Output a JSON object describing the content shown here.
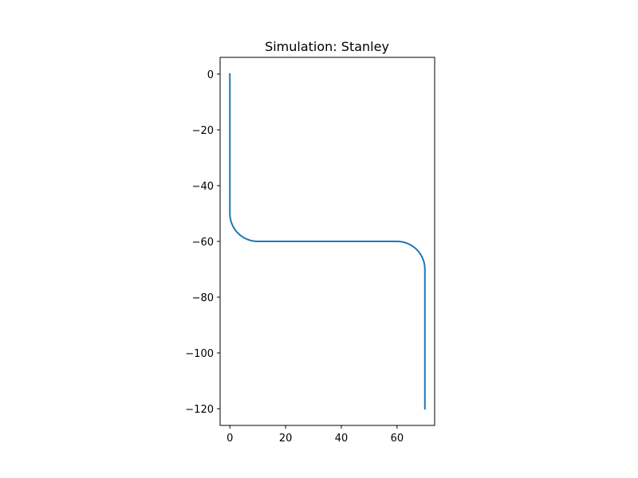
{
  "chart_data": {
    "type": "line",
    "title": "Simulation: Stanley",
    "xlabel": "",
    "ylabel": "",
    "xlim": [
      -3.5,
      73.5
    ],
    "ylim": [
      -126,
      6
    ],
    "xticks": [
      0,
      20,
      40,
      60
    ],
    "yticks": [
      0,
      -20,
      -40,
      -60,
      -80,
      -100,
      -120
    ],
    "xtick_labels": [
      "0",
      "20",
      "40",
      "60"
    ],
    "ytick_labels": [
      "0",
      "−20",
      "−40",
      "−60",
      "−80",
      "−100",
      "−120"
    ],
    "grid": false,
    "series": [
      {
        "color": "#1f77b4",
        "x": [
          0,
          0,
          0.04,
          0.17,
          0.38,
          0.68,
          1.05,
          1.5,
          2.02,
          2.61,
          3.26,
          3.97,
          4.74,
          5.55,
          6.4,
          7.28,
          8.18,
          9.09,
          10,
          20,
          30,
          40,
          50,
          60,
          60.91,
          61.82,
          62.72,
          63.6,
          64.45,
          65.26,
          66.03,
          66.74,
          67.39,
          67.98,
          68.5,
          68.95,
          69.32,
          69.62,
          69.83,
          69.96,
          70,
          70,
          70,
          70
        ],
        "y": [
          0,
          -50,
          -50.91,
          -51.82,
          -52.72,
          -53.6,
          -54.45,
          -55.26,
          -56.03,
          -56.74,
          -57.39,
          -57.98,
          -58.5,
          -58.95,
          -59.32,
          -59.62,
          -59.83,
          -59.96,
          -60,
          -60,
          -60,
          -60,
          -60,
          -60,
          -60.04,
          -60.17,
          -60.38,
          -60.68,
          -61.05,
          -61.5,
          -62.02,
          -62.61,
          -63.26,
          -63.97,
          -64.74,
          -65.55,
          -66.4,
          -67.28,
          -68.18,
          -69.09,
          -70,
          -80,
          -100,
          -120
        ]
      }
    ]
  }
}
